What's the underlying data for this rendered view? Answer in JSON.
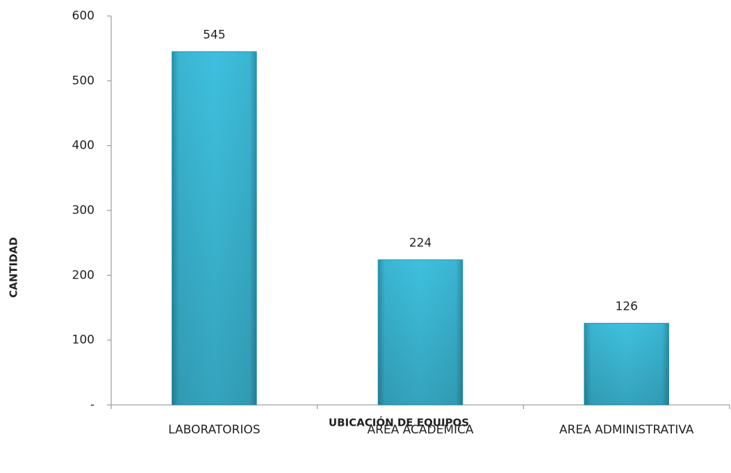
{
  "chart_data": {
    "type": "bar",
    "categories": [
      "LABORATORIOS",
      "AREA ACADEMICA",
      "AREA ADMINISTRATIVA"
    ],
    "values": [
      545,
      224,
      126
    ],
    "color": "#3bbcd9",
    "xlabel": "UBICACIÓN DE EQUIPOS",
    "ylabel": "CANTIDAD",
    "ylim": [
      0,
      600
    ],
    "yticks": [
      {
        "value": 0,
        "label": "-"
      },
      100,
      200,
      300,
      400,
      500,
      600
    ],
    "grid": false
  }
}
